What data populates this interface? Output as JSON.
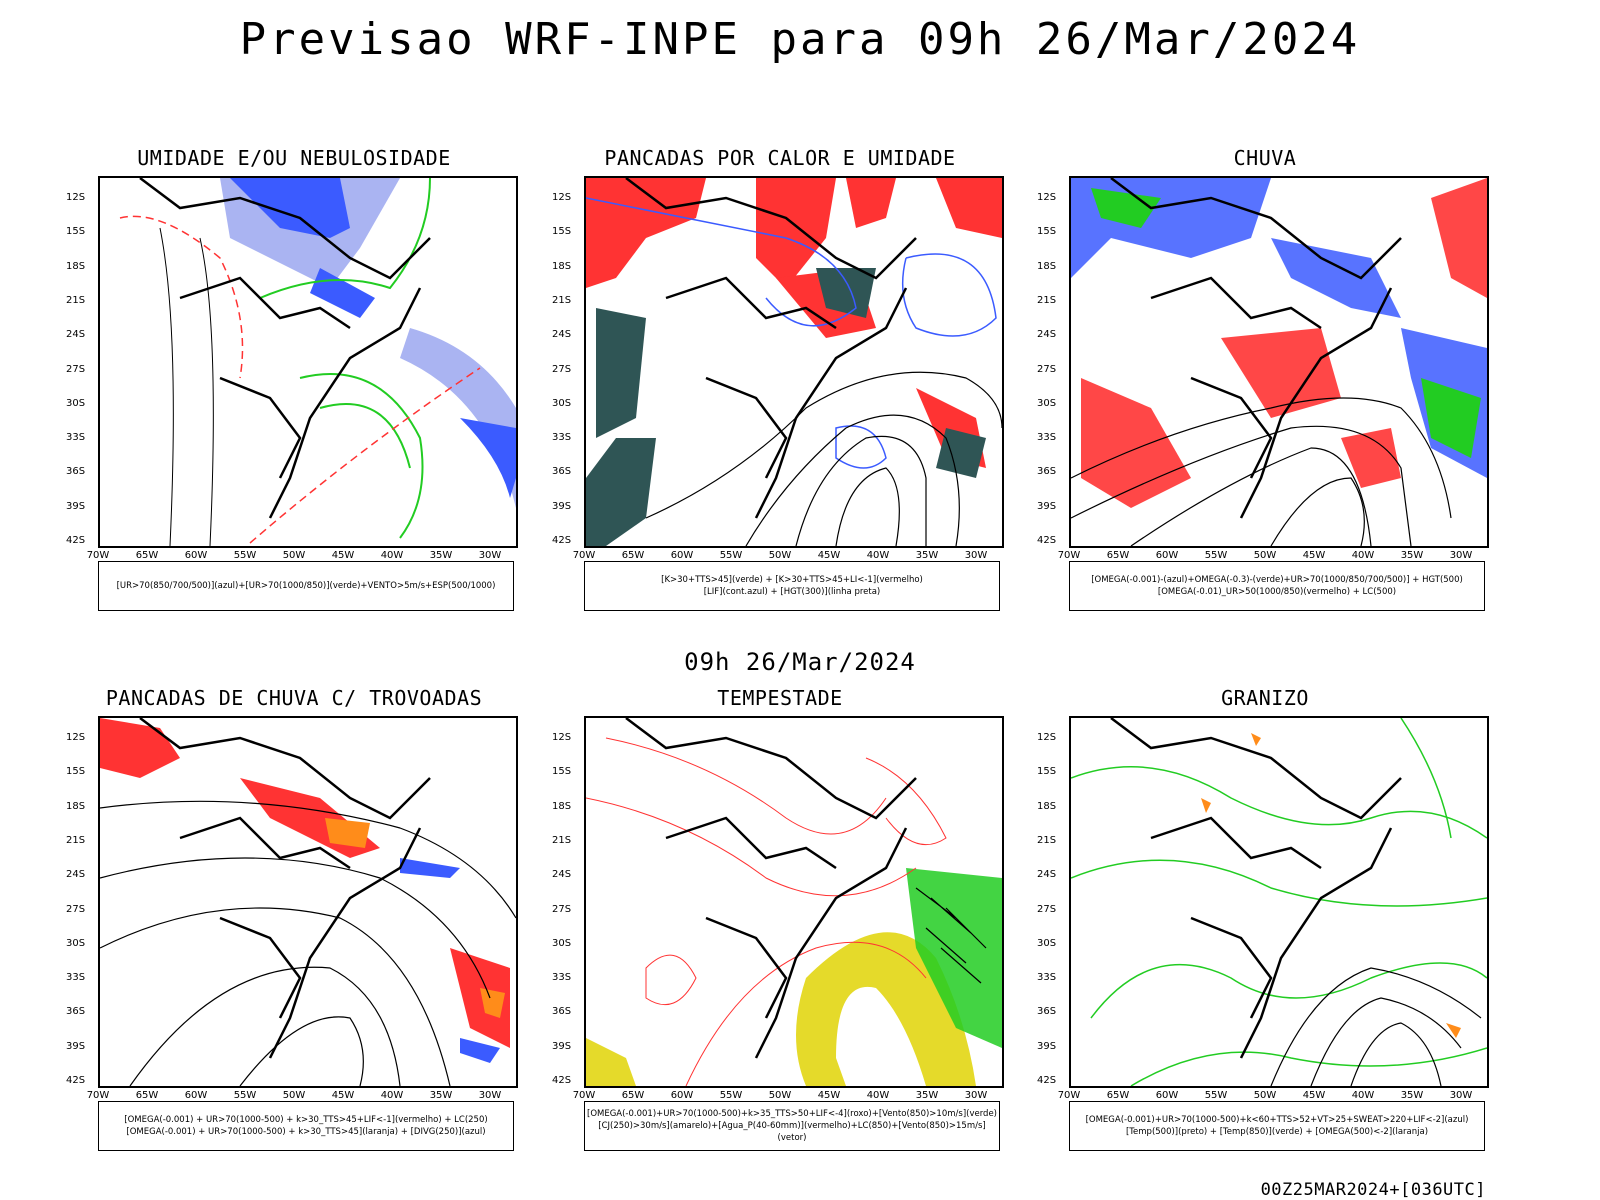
{
  "page": {
    "title": "Previsao WRF-INPE  para 09h 26/Mar/2024",
    "subtitle": "09h 26/Mar/2024",
    "footer": "00Z25MAR2024+[036UTC]"
  },
  "axes": {
    "lat": [
      "12S",
      "15S",
      "18S",
      "21S",
      "24S",
      "27S",
      "30S",
      "33S",
      "36S",
      "39S",
      "42S"
    ],
    "lon": [
      "70W",
      "65W",
      "60W",
      "55W",
      "50W",
      "45W",
      "40W",
      "35W",
      "30W"
    ]
  },
  "colors": {
    "blue": "#3b5bff",
    "lightblue": "#aab4f2",
    "green": "#22cc22",
    "red": "#ff3333",
    "orange": "#ff8c1a",
    "darkteal": "#2f5555",
    "yellow": "#e5da2a",
    "black": "#000000"
  },
  "panels": [
    {
      "title": "UMIDADE E/OU NEBULOSIDADE",
      "legend": [
        "[UR>70(850/700/500)](azul)+[UR>70(1000/850)](verde)+VENTO>5m/s+ESP(500/1000)"
      ]
    },
    {
      "title": "PANCADAS POR CALOR E UMIDADE",
      "legend": [
        "[K>30+TTS>45](verde) + [K>30+TTS>45+LI<-1](vermelho)",
        "[LIF](cont.azul) + [HGT(300)](linha preta)"
      ]
    },
    {
      "title": "CHUVA",
      "legend": [
        "[OMEGA(-0.001)-(azul)+OMEGA(-0.3)-(verde)+UR>70(1000/850/700/500)] + HGT(500)",
        "[OMEGA(-0.01)_UR>50(1000/850)(vermelho) + LC(500)"
      ]
    },
    {
      "title": "PANCADAS DE CHUVA C/ TROVOADAS",
      "legend": [
        "[OMEGA(-0.001) + UR>70(1000-500) + k>30_TTS>45+LIF<-1](vermelho) + LC(250)",
        "[OMEGA(-0.001) + UR>70(1000-500) + k>30_TTS>45](laranja) + [DIVG(250)](azul)"
      ]
    },
    {
      "title": "TEMPESTADE",
      "legend": [
        "[OMEGA(-0.001)+UR>70(1000-500)+k>35_TTS>50+LIF<-4](roxo)+[Vento(850)>10m/s](verde)",
        "[CJ(250)>30m/s](amarelo)+[Agua_P(40-60mm)](vermelho)+LC(850)+[Vento(850)>15m/s](vetor)"
      ]
    },
    {
      "title": "GRANIZO",
      "legend": [
        "[OMEGA(-0.001)+UR>70(1000-500)+k<60+TTS>52+VT>25+SWEAT>220+LIF<-2](azul)",
        "[Temp(500)](preto) + [Temp(850)](verde) + [OMEGA(500)<-2](laranja)"
      ]
    }
  ]
}
